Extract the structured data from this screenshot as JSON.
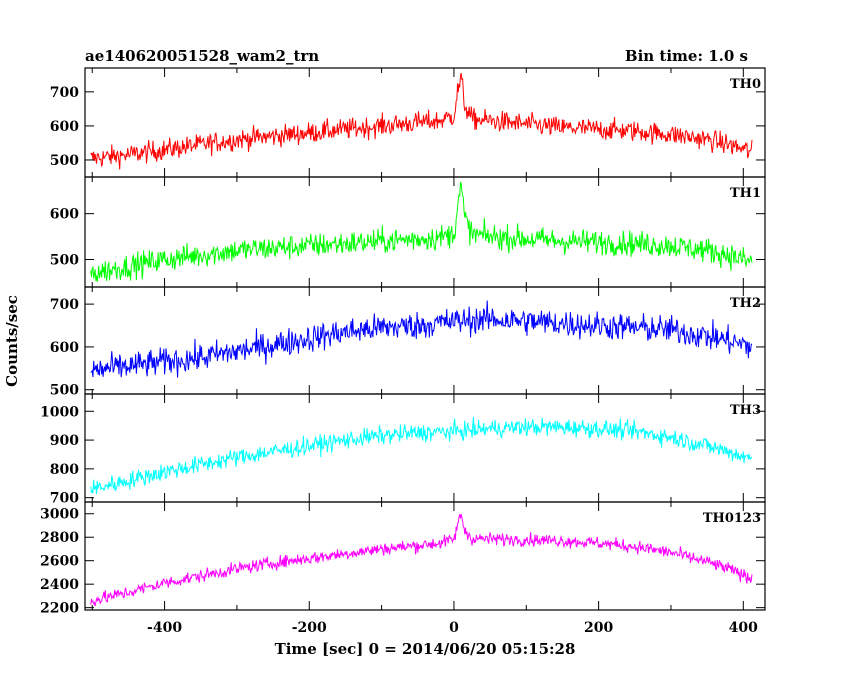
{
  "chart_data": {
    "type": "line",
    "title": "ae140620051528_wam2_trn",
    "subtitle": "Bin time: 1.0 s",
    "xlabel": "Time [sec] 0 = 2014/06/20 05:15:28",
    "ylabel": "Counts/sec",
    "xlim": [
      -510,
      430
    ],
    "xticks": [
      -400,
      -200,
      0,
      200,
      400
    ],
    "grid": false,
    "panels": [
      {
        "name": "TH0",
        "color": "#ff0000",
        "ylim": [
          450,
          770
        ],
        "yticks": [
          500,
          600,
          700
        ],
        "x": [
          -500,
          -450,
          -400,
          -350,
          -300,
          -250,
          -200,
          -150,
          -100,
          -50,
          -20,
          0,
          5,
          10,
          15,
          25,
          50,
          100,
          150,
          200,
          250,
          300,
          350,
          380,
          410
        ],
        "values": [
          505,
          515,
          530,
          545,
          560,
          570,
          580,
          590,
          600,
          610,
          615,
          630,
          700,
          740,
          660,
          620,
          615,
          605,
          595,
          590,
          585,
          575,
          560,
          545,
          525
        ],
        "noise": 40
      },
      {
        "name": "TH1",
        "color": "#00ff00",
        "ylim": [
          440,
          680
        ],
        "yticks": [
          500,
          600
        ],
        "x": [
          -500,
          -450,
          -400,
          -350,
          -300,
          -250,
          -200,
          -150,
          -100,
          -50,
          -20,
          0,
          5,
          10,
          15,
          25,
          50,
          100,
          150,
          200,
          250,
          300,
          350,
          380,
          410
        ],
        "values": [
          470,
          485,
          500,
          510,
          520,
          525,
          530,
          535,
          540,
          545,
          548,
          555,
          620,
          660,
          590,
          555,
          550,
          545,
          540,
          538,
          535,
          530,
          520,
          510,
          495
        ],
        "noise": 35
      },
      {
        "name": "TH2",
        "color": "#0000ff",
        "ylim": [
          490,
          740
        ],
        "yticks": [
          500,
          600,
          700
        ],
        "x": [
          -500,
          -450,
          -400,
          -350,
          -300,
          -250,
          -200,
          -150,
          -100,
          -50,
          0,
          50,
          100,
          150,
          200,
          250,
          300,
          350,
          380,
          410
        ],
        "values": [
          545,
          555,
          565,
          575,
          590,
          605,
          620,
          635,
          645,
          650,
          660,
          665,
          660,
          655,
          650,
          645,
          640,
          625,
          615,
          600
        ],
        "noise": 42
      },
      {
        "name": "TH3",
        "color": "#00ffff",
        "ylim": [
          685,
          1060
        ],
        "yticks": [
          700,
          800,
          900,
          1000
        ],
        "x": [
          -500,
          -450,
          -400,
          -350,
          -300,
          -250,
          -200,
          -150,
          -100,
          -50,
          0,
          50,
          100,
          150,
          200,
          250,
          300,
          350,
          380,
          410
        ],
        "values": [
          730,
          760,
          790,
          815,
          840,
          860,
          880,
          900,
          915,
          925,
          930,
          940,
          945,
          945,
          940,
          930,
          910,
          880,
          860,
          835
        ],
        "noise": 40
      },
      {
        "name": "TH0123",
        "color": "#ff00ff",
        "ylim": [
          2180,
          3100
        ],
        "yticks": [
          2200,
          2400,
          2600,
          2800,
          3000
        ],
        "x": [
          -500,
          -450,
          -400,
          -350,
          -300,
          -250,
          -200,
          -150,
          -100,
          -50,
          -20,
          0,
          5,
          10,
          15,
          25,
          50,
          100,
          150,
          200,
          250,
          300,
          350,
          380,
          410
        ],
        "values": [
          2260,
          2330,
          2410,
          2470,
          2530,
          2580,
          2620,
          2660,
          2700,
          2730,
          2750,
          2780,
          2900,
          3000,
          2850,
          2790,
          2785,
          2780,
          2770,
          2750,
          2720,
          2670,
          2590,
          2530,
          2450
        ],
        "noise": 70
      }
    ]
  }
}
